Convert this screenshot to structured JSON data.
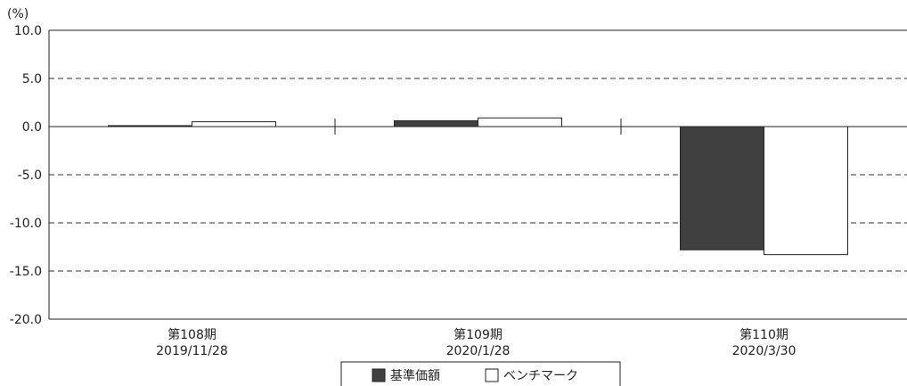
{
  "chart_data": {
    "type": "bar",
    "unit_label": "(%)",
    "categories": [
      {
        "line1": "第108期",
        "line2": "2019/11/28"
      },
      {
        "line1": "第109期",
        "line2": "2020/1/28"
      },
      {
        "line1": "第110期",
        "line2": "2020/3/30"
      }
    ],
    "series": [
      {
        "name": "基準価額",
        "color": "#404040",
        "values": [
          0.1,
          0.6,
          -12.8
        ]
      },
      {
        "name": "ベンチマーク",
        "color": "#ffffff",
        "values": [
          0.5,
          0.9,
          -13.3
        ]
      }
    ],
    "ylim": [
      -20,
      10
    ],
    "yticks": [
      "10.0",
      "5.0",
      "0.0",
      "-5.0",
      "-10.0",
      "-15.0",
      "-20.0"
    ],
    "grid": "dashed horizontal",
    "legend_position": "bottom-center"
  }
}
